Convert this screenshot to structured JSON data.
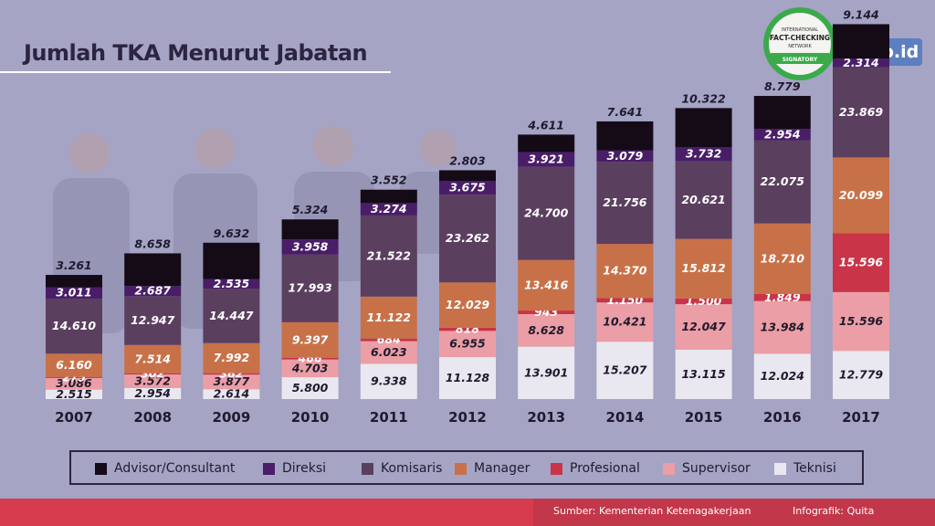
{
  "title": "Jumlah TKA Menurut Jabatan",
  "badge": {
    "top": "INTERNATIONAL",
    "main": "FACT-CHECKING",
    "sub": "NETWORK",
    "bottom": "SIGNATORY"
  },
  "logo": "tirto.id",
  "footer": {
    "source": "Sumber: Kementerian Ketenagakerjaan",
    "credit": "Infografik: Quita"
  },
  "colors": {
    "background": "#a5a4c4",
    "footer": "#d63b4e",
    "title": "#2c2440"
  },
  "chart_data": {
    "type": "bar",
    "stacked": true,
    "title": "Jumlah TKA Menurut Jabatan",
    "categories": [
      "2007",
      "2008",
      "2009",
      "2010",
      "2011",
      "2012",
      "2013",
      "2014",
      "2015",
      "2016",
      "2017"
    ],
    "series": [
      {
        "name": "Teknisi",
        "color": "#e9e8f0",
        "text": "#1f1a2e",
        "values": [
          2515,
          2954,
          2614,
          5800,
          9338,
          11128,
          13901,
          15207,
          13115,
          12024,
          12779
        ],
        "labels": [
          "2.515",
          "2.954",
          "2.614",
          "5.800",
          "9.338",
          "11.128",
          "13.901",
          "15.207",
          "13.115",
          "12.024",
          "12.779"
        ]
      },
      {
        "name": "Supervisor",
        "color": "#eb9ea6",
        "text": "#1f1a2e",
        "values": [
          3086,
          3572,
          3877,
          4703,
          6023,
          6955,
          8628,
          10421,
          12047,
          13984,
          15596
        ],
        "labels": [
          "3.086",
          "3.572",
          "3.877",
          "4.703",
          "6.023",
          "6.955",
          "8.628",
          "10.421",
          "12.047",
          "13.984",
          "15.596"
        ]
      },
      {
        "name": "Profesional",
        "color": "#c93448",
        "text": "#ffffff",
        "values": [
          275,
          302,
          362,
          466,
          684,
          818,
          943,
          1150,
          1500,
          1849,
          15596
        ],
        "labels": [
          "275",
          "302",
          "362",
          "466",
          "684",
          "818",
          "943",
          "1.150",
          "1.500",
          "1.849",
          "15.596"
        ]
      },
      {
        "name": "Manager",
        "color": "#c87149",
        "text": "#ffffff",
        "values": [
          6160,
          7514,
          7992,
          9397,
          11122,
          12029,
          13416,
          14370,
          15812,
          18710,
          20099
        ],
        "labels": [
          "6.160",
          "7.514",
          "7.992",
          "9.397",
          "11.122",
          "12.029",
          "13.416",
          "14.370",
          "15.812",
          "18.710",
          "20.099"
        ]
      },
      {
        "name": "Komisaris",
        "color": "#5b3f5f",
        "text": "#ffffff",
        "values": [
          14610,
          12947,
          14447,
          17993,
          21522,
          23262,
          24700,
          21756,
          20621,
          22075,
          23869
        ],
        "labels": [
          "14.610",
          "12.947",
          "14.447",
          "17.993",
          "21.522",
          "23.262",
          "24.700",
          "21.756",
          "20.621",
          "22.075",
          "23.869"
        ]
      },
      {
        "name": "Direksi",
        "color": "#4a1d68",
        "text": "#ffffff",
        "values": [
          3011,
          2687,
          2535,
          3958,
          3274,
          3675,
          3921,
          3079,
          3732,
          2954,
          2314
        ],
        "labels": [
          "3.011",
          "2.687",
          "2.535",
          "3.958",
          "3.274",
          "3.675",
          "3.921",
          "3.079",
          "3.732",
          "2.954",
          "2.314"
        ]
      },
      {
        "name": "Advisor/Consultant",
        "color": "#140b16",
        "text": "#1f1a2e",
        "values": [
          3261,
          8658,
          9632,
          5324,
          3552,
          2803,
          4611,
          7641,
          10322,
          8779,
          9144
        ],
        "labels": [
          "3.261",
          "8.658",
          "9.632",
          "5.324",
          "3.552",
          "2.803",
          "4.611",
          "7.641",
          "10.322",
          "8.779",
          "9.144"
        ]
      }
    ],
    "legend": [
      "Advisor/Consultant",
      "Direksi",
      "Komisaris",
      "Manager",
      "Profesional",
      "Supervisor",
      "Teknisi"
    ],
    "legend_position": "bottom"
  }
}
